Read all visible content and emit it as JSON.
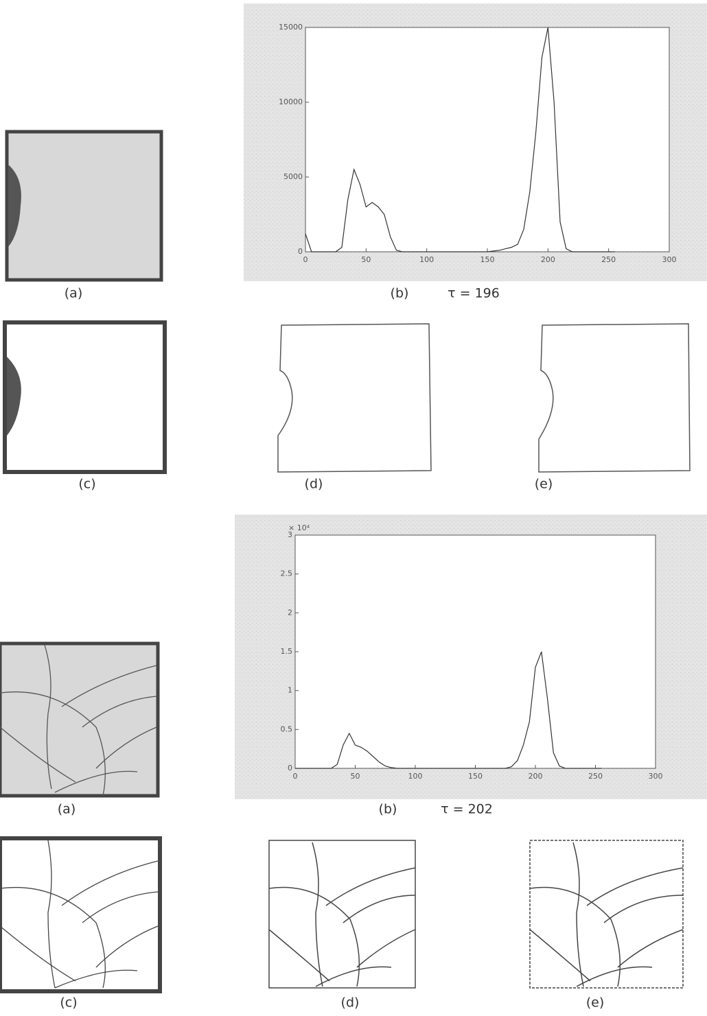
{
  "chart_data": [
    {
      "type": "line",
      "caption": "(b)",
      "annotation": "τ = 196",
      "color": "#333333",
      "x": [
        0,
        5,
        10,
        15,
        20,
        25,
        30,
        35,
        40,
        45,
        50,
        55,
        60,
        65,
        70,
        75,
        80,
        85,
        90,
        95,
        100,
        105,
        110,
        115,
        120,
        125,
        130,
        135,
        140,
        145,
        150,
        155,
        160,
        165,
        170,
        175,
        180,
        185,
        190,
        195,
        200,
        205,
        210,
        215,
        220,
        225,
        230,
        235,
        240,
        245,
        250,
        255
      ],
      "values": [
        1200,
        0,
        0,
        0,
        0,
        0,
        300,
        3500,
        5500,
        4500,
        3000,
        3300,
        3000,
        2500,
        1000,
        100,
        0,
        0,
        0,
        0,
        0,
        0,
        0,
        0,
        0,
        0,
        0,
        0,
        0,
        0,
        0,
        50,
        100,
        200,
        300,
        500,
        1500,
        4000,
        8000,
        13000,
        15000,
        10000,
        2000,
        200,
        0,
        0,
        0,
        0,
        0,
        0,
        0,
        0
      ],
      "xlim": [
        0,
        300
      ],
      "ylim": [
        0,
        15000
      ],
      "xticks": [
        0,
        50,
        100,
        150,
        200,
        250,
        300
      ],
      "yticks": [
        0,
        5000,
        10000,
        15000
      ]
    },
    {
      "type": "line",
      "caption": "(b)",
      "annotation": "τ = 202",
      "color": "#333333",
      "y_multiplier": "× 10⁴",
      "x": [
        0,
        5,
        10,
        15,
        20,
        25,
        30,
        35,
        40,
        45,
        50,
        55,
        60,
        65,
        70,
        75,
        80,
        85,
        90,
        95,
        100,
        105,
        110,
        115,
        120,
        125,
        130,
        135,
        140,
        145,
        150,
        155,
        160,
        165,
        170,
        175,
        180,
        185,
        190,
        195,
        200,
        205,
        210,
        215,
        220,
        225,
        230,
        235,
        240,
        245,
        250,
        255
      ],
      "values": [
        0,
        0,
        0,
        0,
        0,
        0,
        0,
        0.05,
        0.3,
        0.45,
        0.3,
        0.27,
        0.22,
        0.15,
        0.08,
        0.03,
        0.01,
        0,
        0,
        0,
        0,
        0,
        0,
        0,
        0,
        0,
        0,
        0,
        0,
        0,
        0,
        0,
        0,
        0,
        0,
        0,
        0.02,
        0.1,
        0.3,
        0.6,
        1.3,
        1.5,
        0.9,
        0.2,
        0.03,
        0,
        0,
        0,
        0,
        0,
        0,
        0
      ],
      "xlim": [
        0,
        300
      ],
      "ylim": [
        0,
        3
      ],
      "xticks": [
        0,
        50,
        100,
        150,
        200,
        250,
        300
      ],
      "yticks": [
        0,
        0.5,
        1,
        1.5,
        2,
        2.5,
        3
      ]
    }
  ],
  "captions": [
    "(a)",
    "(c)",
    "(d)",
    "(e)",
    "(a)",
    "(c)",
    "(d)",
    "(e)"
  ]
}
